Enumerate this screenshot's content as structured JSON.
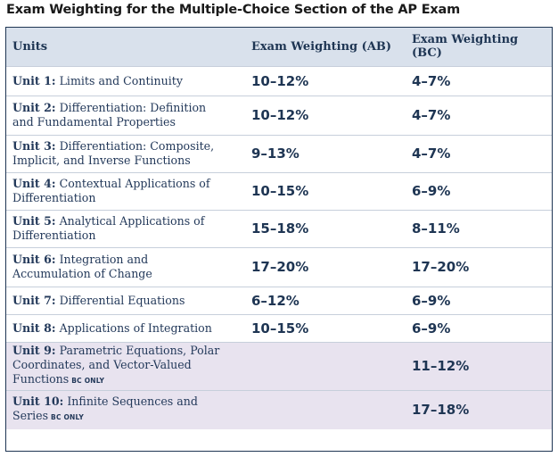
{
  "title": "Exam Weighting for the Multiple-Choice Section of the AP Exam",
  "headers": {
    "units": "Units",
    "ab": "Exam Weighting (AB)",
    "bc": "Exam Weighting (BC)"
  },
  "rows": [
    {
      "unit_label": "Unit 1:",
      "unit_line1": "Limits and Continuity",
      "unit_line2": "",
      "unit_line3": "",
      "tag": "",
      "ab": "10–12%",
      "bc": "4–7%"
    },
    {
      "unit_label": "Unit 2:",
      "unit_line1": "Differentiation: Definition",
      "unit_line2": "and Fundamental Properties",
      "unit_line3": "",
      "tag": "",
      "ab": "10–12%",
      "bc": "4–7%"
    },
    {
      "unit_label": "Unit 3:",
      "unit_line1": "Differentiation: Composite,",
      "unit_line2": "Implicit, and Inverse Functions",
      "unit_line3": "",
      "tag": "",
      "ab": "9–13%",
      "bc": "4–7%"
    },
    {
      "unit_label": "Unit 4:",
      "unit_line1": "Contextual Applications of",
      "unit_line2": "Differentiation",
      "unit_line3": "",
      "tag": "",
      "ab": "10–15%",
      "bc": "6–9%"
    },
    {
      "unit_label": "Unit 5:",
      "unit_line1": "Analytical Applications of",
      "unit_line2": "Differentiation",
      "unit_line3": "",
      "tag": "",
      "ab": "15–18%",
      "bc": "8–11%"
    },
    {
      "unit_label": "Unit 6:",
      "unit_line1": "Integration and",
      "unit_line2": "Accumulation of Change",
      "unit_line3": "",
      "tag": "",
      "ab": "17–20%",
      "bc": "17–20%"
    },
    {
      "unit_label": "Unit 7:",
      "unit_line1": "Differential Equations",
      "unit_line2": "",
      "unit_line3": "",
      "tag": "",
      "ab": "6–12%",
      "bc": "6–9%"
    },
    {
      "unit_label": "Unit 8:",
      "unit_line1": "Applications of Integration",
      "unit_line2": "",
      "unit_line3": "",
      "tag": "",
      "ab": "10–15%",
      "bc": "6–9%"
    },
    {
      "unit_label": "Unit 9:",
      "unit_line1": "Parametric Equations, Polar",
      "unit_line2": "Coordinates, and Vector-Valued",
      "unit_line3": "Functions",
      "tag": "BC ONLY",
      "ab": "",
      "bc": "11–12%"
    },
    {
      "unit_label": "Unit 10:",
      "unit_line1": "Infinite Sequences and",
      "unit_line2": "Series",
      "unit_line3": "",
      "tag": "BC ONLY",
      "ab": "",
      "bc": "17–18%"
    }
  ],
  "colors": {
    "header_bg": "#d9e1ec",
    "text_navy": "#1e3553",
    "bc_only_row_bg": "#e8e3ef",
    "border": "#c7cfdb"
  }
}
